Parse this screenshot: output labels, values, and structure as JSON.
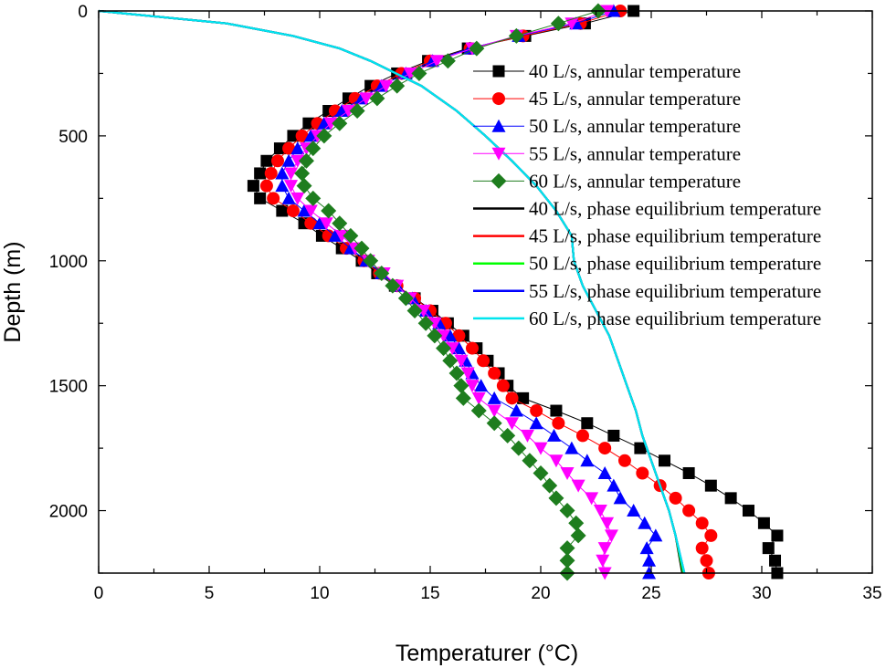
{
  "chart_data": {
    "type": "scatter",
    "title": "",
    "xlabel": "Temperaturer (°C)",
    "ylabel": "Depth (m)",
    "xlim": [
      0,
      35
    ],
    "ylim": [
      0,
      2250
    ],
    "y_inverted": true,
    "x_ticks": [
      0,
      5,
      10,
      15,
      20,
      25,
      30,
      35
    ],
    "y_ticks": [
      0,
      500,
      1000,
      1500,
      2000
    ],
    "grid": false,
    "legend_placement": "top-right",
    "depth": [
      0,
      50,
      100,
      150,
      200,
      250,
      300,
      350,
      400,
      450,
      500,
      550,
      600,
      650,
      700,
      750,
      800,
      850,
      900,
      950,
      1000,
      1050,
      1100,
      1150,
      1200,
      1250,
      1300,
      1350,
      1400,
      1450,
      1500,
      1550,
      1600,
      1650,
      1700,
      1750,
      1800,
      1850,
      1900,
      1950,
      2000,
      2050,
      2100,
      2150,
      2200,
      2250
    ],
    "phase_depth": [
      0,
      50,
      100,
      150,
      200,
      300,
      400,
      500,
      600,
      700,
      800,
      900,
      1000,
      1100,
      1200,
      1300,
      1400,
      1500,
      1600,
      1700,
      1800,
      1900,
      2000,
      2100,
      2250
    ],
    "series": [
      {
        "name": "40 L/s, annular temperature",
        "kind": "marker",
        "marker": "square",
        "color": "#000000",
        "values": [
          24.2,
          22.0,
          19.3,
          16.7,
          14.9,
          13.5,
          12.3,
          11.3,
          10.4,
          9.5,
          8.8,
          8.2,
          7.6,
          7.3,
          7.0,
          7.3,
          8.3,
          9.3,
          10.1,
          11.0,
          11.9,
          12.6,
          13.4,
          14.3,
          15.1,
          15.8,
          16.5,
          17.1,
          17.6,
          18.1,
          18.5,
          19.2,
          20.7,
          22.1,
          23.3,
          24.5,
          25.6,
          26.7,
          27.7,
          28.6,
          29.4,
          30.1,
          30.7,
          30.3,
          30.6,
          30.7
        ]
      },
      {
        "name": "45 L/s, annular temperature",
        "kind": "marker",
        "marker": "circle",
        "color": "#ff0000",
        "values": [
          23.6,
          21.8,
          19.2,
          16.8,
          15.0,
          13.7,
          12.6,
          11.6,
          10.7,
          9.9,
          9.2,
          8.6,
          8.1,
          7.8,
          7.6,
          7.9,
          8.8,
          9.6,
          10.4,
          11.2,
          12.0,
          12.7,
          13.5,
          14.3,
          15.0,
          15.7,
          16.3,
          16.9,
          17.4,
          17.9,
          18.3,
          18.7,
          19.8,
          20.8,
          21.9,
          22.9,
          23.8,
          24.6,
          25.4,
          26.1,
          26.7,
          27.3,
          27.7,
          27.3,
          27.5,
          27.6
        ]
      },
      {
        "name": "50 L/s, annular temperature",
        "kind": "marker",
        "marker": "triangle-up",
        "color": "#0000ff",
        "values": [
          23.3,
          21.6,
          19.0,
          16.8,
          15.1,
          13.9,
          12.8,
          11.9,
          11.0,
          10.2,
          9.6,
          9.0,
          8.6,
          8.3,
          8.3,
          8.6,
          9.3,
          10.0,
          10.7,
          11.4,
          12.1,
          12.8,
          13.5,
          14.2,
          14.8,
          15.4,
          15.9,
          16.3,
          16.6,
          16.9,
          17.3,
          17.9,
          18.9,
          19.8,
          20.6,
          21.4,
          22.1,
          22.9,
          23.3,
          23.6,
          24.2,
          24.7,
          25.2,
          24.8,
          24.9,
          24.9
        ]
      },
      {
        "name": "55 L/s, annular temperature",
        "kind": "marker",
        "marker": "triangle-down",
        "color": "#ff00ff",
        "values": [
          23.0,
          21.4,
          18.9,
          16.9,
          15.3,
          14.1,
          13.0,
          12.1,
          11.3,
          10.5,
          9.9,
          9.4,
          9.0,
          8.7,
          8.7,
          9.0,
          9.6,
          10.3,
          11.0,
          11.6,
          12.2,
          12.9,
          13.5,
          14.1,
          14.7,
          15.2,
          15.6,
          16.0,
          16.4,
          16.7,
          16.9,
          17.2,
          17.9,
          18.7,
          19.4,
          20.0,
          20.7,
          21.2,
          21.7,
          22.3,
          22.7,
          23.0,
          23.2,
          22.9,
          22.8,
          22.9
        ]
      },
      {
        "name": "60 L/s, annular temperature",
        "kind": "marker",
        "marker": "diamond",
        "color": "#1e7d1e",
        "values": [
          22.6,
          20.8,
          18.9,
          17.1,
          15.8,
          14.5,
          13.5,
          12.6,
          11.7,
          10.9,
          10.2,
          9.7,
          9.4,
          9.2,
          9.3,
          9.7,
          10.4,
          10.9,
          11.4,
          11.9,
          12.3,
          12.8,
          13.3,
          13.9,
          14.3,
          14.8,
          15.2,
          15.6,
          15.9,
          16.2,
          16.4,
          16.5,
          17.2,
          17.9,
          18.5,
          19.0,
          19.5,
          20.0,
          20.4,
          20.7,
          21.2,
          21.6,
          21.7,
          21.2,
          21.2,
          21.2
        ]
      },
      {
        "name": "40 L/s, phase equilibrium temperature",
        "kind": "line",
        "color": "#000000",
        "values": [
          0,
          5.8,
          8.8,
          10.9,
          12.3,
          14.6,
          16.2,
          17.5,
          18.7,
          19.8,
          20.7,
          21.4,
          21.5,
          21.9,
          22.5,
          23.1,
          23.5,
          23.9,
          24.3,
          24.6,
          25.0,
          25.4,
          25.8,
          26.1,
          26.4
        ]
      },
      {
        "name": "45 L/s, phase equilibrium temperature",
        "kind": "line",
        "color": "#ff0000",
        "values": [
          0,
          5.8,
          8.8,
          10.9,
          12.3,
          14.6,
          16.2,
          17.5,
          18.7,
          19.8,
          20.7,
          21.4,
          21.5,
          21.9,
          22.5,
          23.1,
          23.5,
          23.9,
          24.3,
          24.6,
          25.0,
          25.4,
          25.8,
          26.1,
          26.45
        ]
      },
      {
        "name": "50 L/s, phase equilibrium temperature",
        "kind": "line",
        "color": "#00ff00",
        "values": [
          0,
          5.8,
          8.8,
          10.9,
          12.3,
          14.6,
          16.2,
          17.5,
          18.7,
          19.8,
          20.7,
          21.4,
          21.5,
          21.9,
          22.5,
          23.1,
          23.5,
          23.9,
          24.3,
          24.6,
          25.0,
          25.4,
          25.8,
          26.1,
          26.45
        ]
      },
      {
        "name": "55 L/s, phase equilibrium temperature",
        "kind": "line",
        "color": "#0000ff",
        "values": [
          0,
          5.8,
          8.8,
          10.9,
          12.3,
          14.6,
          16.2,
          17.5,
          18.7,
          19.8,
          20.7,
          21.4,
          21.5,
          21.9,
          22.5,
          23.1,
          23.5,
          23.9,
          24.3,
          24.6,
          25.0,
          25.4,
          25.8,
          26.1,
          26.5
        ]
      },
      {
        "name": "60 L/s, phase equilibrium temperature",
        "kind": "line",
        "color": "#00e5ee",
        "values": [
          0,
          5.8,
          8.8,
          10.9,
          12.3,
          14.6,
          16.2,
          17.5,
          18.7,
          19.8,
          20.7,
          21.4,
          21.5,
          21.9,
          22.5,
          23.1,
          23.5,
          23.9,
          24.3,
          24.6,
          25.0,
          25.4,
          25.8,
          26.1,
          26.5
        ]
      }
    ]
  }
}
